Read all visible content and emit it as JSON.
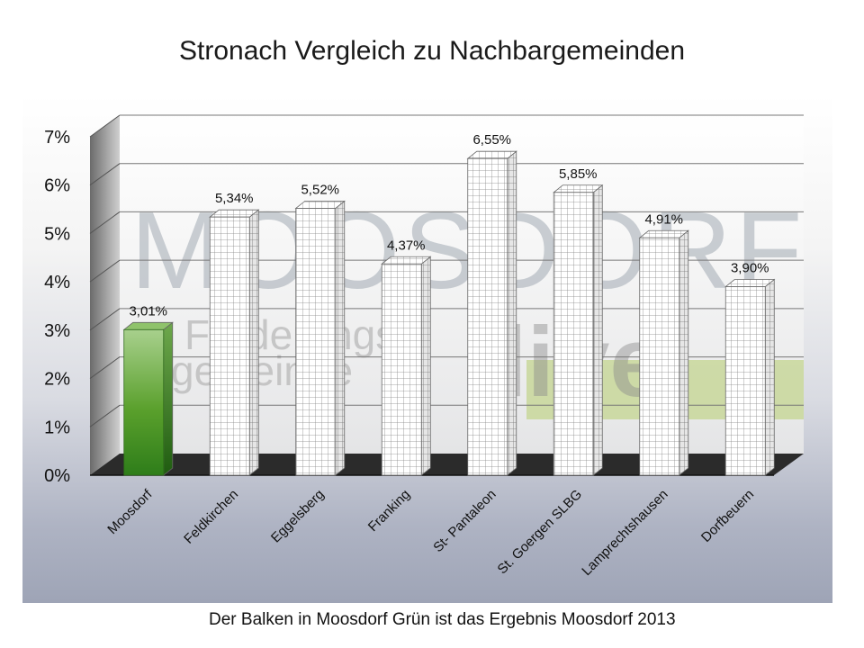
{
  "chart_data": {
    "type": "bar",
    "title": "Stronach Vergleich  zu Nachbargemeinden",
    "categories": [
      "Moosdorf",
      "Feldkirchen",
      "Eggelsberg",
      "Franking",
      "St- Pantaleon",
      "St. Goergen SLBG",
      "Lamprechtshausen",
      "Dorfbeuern"
    ],
    "values": [
      3.01,
      5.34,
      5.52,
      4.37,
      6.55,
      5.85,
      4.91,
      3.9
    ],
    "data_labels": [
      "3,01%",
      "5,34%",
      "5,52%",
      "4,37%",
      "6,55%",
      "5,85%",
      "4,91%",
      "3,90%"
    ],
    "highlight_category": "Moosdorf",
    "highlight_color": "#5aa02c",
    "bar_pattern": "grid",
    "yticks": [
      "0%",
      "1%",
      "2%",
      "3%",
      "4%",
      "5%",
      "6%",
      "7%"
    ],
    "ylim": [
      0,
      7
    ],
    "grid": true,
    "legend": "none",
    "style": "3d"
  },
  "watermark": {
    "brand": "MOOSDORF",
    "subtitle_1": "Förderungs-",
    "subtitle_2": "gemeinde",
    "logo_text": "live"
  },
  "footnote": "Der Balken in Moosdorf Grün ist das Ergebnis Moosdorf 2013"
}
